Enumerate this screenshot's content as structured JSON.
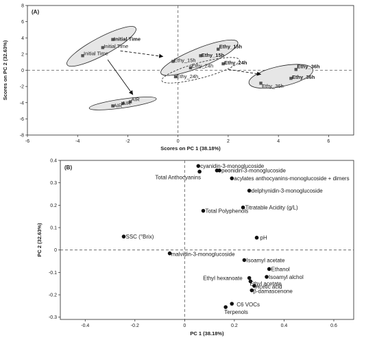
{
  "chart_data": [
    {
      "panel": "(A)",
      "type": "scatter",
      "xlabel": "Scores on PC 1 (38.18%)",
      "ylabel": "Scores on PC 2 (32.63%)",
      "xlim": [
        -6,
        7
      ],
      "ylim": [
        -8,
        8
      ],
      "xticks": [
        "-6",
        "-4",
        "-2",
        "0",
        "2",
        "4",
        "6"
      ],
      "yticks": [
        "-8",
        "-6",
        "-4",
        "-2",
        "0",
        "2",
        "4",
        "6",
        "8"
      ],
      "grid": false,
      "points": [
        {
          "x": -2.6,
          "y": 3.8,
          "label": "Initial Time",
          "bold": true,
          "dx": 1.5,
          "dy": 1.8
        },
        {
          "x": -3.0,
          "y": 2.8,
          "label": "Initial Time",
          "bold": false,
          "dx": 1.5,
          "dy": 0.5
        },
        {
          "x": -3.8,
          "y": 1.8,
          "label": "Initial Time",
          "bold": false,
          "dx": 1.5,
          "dy": -0.5
        },
        {
          "x": -1.9,
          "y": -3.9,
          "label": "AIR",
          "bold": false,
          "dx": 1.2,
          "dy": -1.2
        },
        {
          "x": -2.2,
          "y": -4.1,
          "label": "AIR",
          "bold": false,
          "dx": -1.0,
          "dy": 2.2
        },
        {
          "x": -2.6,
          "y": -4.4,
          "label": "AIR",
          "bold": false,
          "dx": 1.2,
          "dy": 2.0
        },
        {
          "x": 0.9,
          "y": 1.8,
          "label": "Ethy_15h",
          "bold": true,
          "dx": 1.2,
          "dy": 1.8
        },
        {
          "x": 1.6,
          "y": 2.6,
          "label": "Ethy_15h",
          "bold": true,
          "dx": 1.5,
          "dy": -1.2
        },
        {
          "x": -0.2,
          "y": 1.1,
          "label": "Ethy_15h",
          "bold": false,
          "dx": 1.5,
          "dy": 1.0
        },
        {
          "x": 0.5,
          "y": 0.3,
          "label": "Ethy_24h",
          "bold": false,
          "dx": 1.5,
          "dy": -0.7
        },
        {
          "x": 1.8,
          "y": 0.8,
          "label": "Ethy_24h",
          "bold": true,
          "dx": 1.5,
          "dy": 0.9
        },
        {
          "x": -0.1,
          "y": -0.8,
          "label": "Ethy_24h",
          "bold": false,
          "dx": 1.5,
          "dy": 1.8
        },
        {
          "x": 4.7,
          "y": 0.1,
          "label": "Ethy_36h",
          "bold": true,
          "dx": 1.5,
          "dy": -2.0
        },
        {
          "x": 4.5,
          "y": -1.0,
          "label": "Ethy_36h",
          "bold": true,
          "dx": 1.5,
          "dy": 0.9
        },
        {
          "x": 3.3,
          "y": -1.6,
          "label": "Ethy_36h",
          "bold": false,
          "dx": 1.5,
          "dy": 6.5
        }
      ],
      "groups": [
        {
          "cx": -3.05,
          "cy": 2.95,
          "rx": 1.55,
          "ry": 1.1,
          "tilt": -28,
          "style": "solid"
        },
        {
          "cx": -2.2,
          "cy": -4.1,
          "rx": 1.35,
          "ry": 0.55,
          "tilt": -8,
          "style": "solid"
        },
        {
          "cx": 0.85,
          "cy": 1.55,
          "rx": 1.65,
          "ry": 1.15,
          "tilt": -22,
          "style": "solid"
        },
        {
          "cx": 0.9,
          "cy": 0.0,
          "rx": 1.6,
          "ry": 0.95,
          "tilt": -15,
          "style": "dashed"
        },
        {
          "cx": 4.1,
          "cy": -0.75,
          "rx": 1.3,
          "ry": 1.25,
          "tilt": -12,
          "style": "solid"
        }
      ],
      "arrows": [
        {
          "from": [
            -2.8,
            1.3
          ],
          "to": [
            -1.8,
            -3.0
          ],
          "style": "solid"
        },
        {
          "from": [
            -2.3,
            2.4
          ],
          "to": [
            -0.6,
            1.7
          ],
          "style": "dashed"
        },
        {
          "from": [
            2.0,
            0.1
          ],
          "to": [
            3.3,
            -0.5
          ],
          "style": "dashed"
        }
      ]
    },
    {
      "panel": "(B)",
      "type": "scatter",
      "xlabel": "PC 1 (38.18%)",
      "ylabel": "PC 2 (32.63%)",
      "xlim": [
        -0.5,
        0.68
      ],
      "ylim": [
        -0.31,
        0.4
      ],
      "xticks": [
        "-0.4",
        "-0.2",
        "0",
        "0.2",
        "0.4",
        "0.6"
      ],
      "yticks": [
        "-0.3",
        "-0.2",
        "-0.1",
        "0",
        "0.1",
        "0.2",
        "0.3",
        "0.4"
      ],
      "grid": false,
      "points": [
        {
          "x": 0.055,
          "y": 0.375,
          "label": "cyanidin-3-monoglucoside",
          "anchor": "start",
          "dx": 3,
          "dy": 3
        },
        {
          "x": 0.14,
          "y": 0.355,
          "label": "peonidin-3-monoglucoside",
          "anchor": "start",
          "dx": 3,
          "dy": 3
        },
        {
          "x": 0.13,
          "y": 0.355,
          "label": "",
          "anchor": "start",
          "dx": 3,
          "dy": 3
        },
        {
          "x": 0.06,
          "y": 0.35,
          "label": "Total Anthocyanins",
          "anchor": "end",
          "dx": 2,
          "dy": 11
        },
        {
          "x": 0.19,
          "y": 0.32,
          "label": "acylates anthocyanins-monoglucoside + dimers",
          "anchor": "start",
          "dx": 3,
          "dy": 3
        },
        {
          "x": 0.26,
          "y": 0.265,
          "label": "delphynidin-3-monoglucoside",
          "anchor": "start",
          "dx": 3,
          "dy": 3
        },
        {
          "x": 0.235,
          "y": 0.19,
          "label": "Titratable Acidity (g/L)",
          "anchor": "start",
          "dx": 3,
          "dy": 3
        },
        {
          "x": 0.075,
          "y": 0.175,
          "label": "Total Polyphenols",
          "anchor": "start",
          "dx": 3,
          "dy": 3
        },
        {
          "x": 0.29,
          "y": 0.055,
          "label": "pH",
          "anchor": "start",
          "dx": 5,
          "dy": 3
        },
        {
          "x": -0.245,
          "y": 0.06,
          "label": "SSC (°Brix)",
          "anchor": "start",
          "dx": 3,
          "dy": 3
        },
        {
          "x": -0.06,
          "y": -0.015,
          "label": "malvidin-3-monoglucoside",
          "anchor": "start",
          "dx": 2,
          "dy": 4
        },
        {
          "x": 0.24,
          "y": -0.045,
          "label": "Isoamyl acetate",
          "anchor": "start",
          "dx": 3,
          "dy": 3
        },
        {
          "x": 0.34,
          "y": -0.085,
          "label": "Ethanol",
          "anchor": "start",
          "dx": 3,
          "dy": 3
        },
        {
          "x": 0.33,
          "y": -0.12,
          "label": "Isoamyl alchol",
          "anchor": "start",
          "dx": 3,
          "dy": 3
        },
        {
          "x": 0.265,
          "y": -0.14,
          "label": "Ethyl acetate",
          "anchor": "start",
          "dx": -1,
          "dy": 6
        },
        {
          "x": 0.28,
          "y": -0.16,
          "label": "Acetic acid",
          "anchor": "start",
          "dx": 2,
          "dy": 4
        },
        {
          "x": 0.27,
          "y": -0.18,
          "label": "β-damascenone",
          "anchor": "start",
          "dx": 2,
          "dy": 4
        },
        {
          "x": 0.19,
          "y": -0.24,
          "label": "C6 VOCs",
          "anchor": "start",
          "dx": 7,
          "dy": 4
        },
        {
          "x": 0.165,
          "y": -0.255,
          "label": "Terpenols",
          "anchor": "start",
          "dx": -2,
          "dy": 10
        },
        {
          "x": 0.26,
          "y": -0.125,
          "label": "Ethyl hexanoate",
          "anchor": "end",
          "dx": -10,
          "dy": 3
        }
      ]
    }
  ]
}
